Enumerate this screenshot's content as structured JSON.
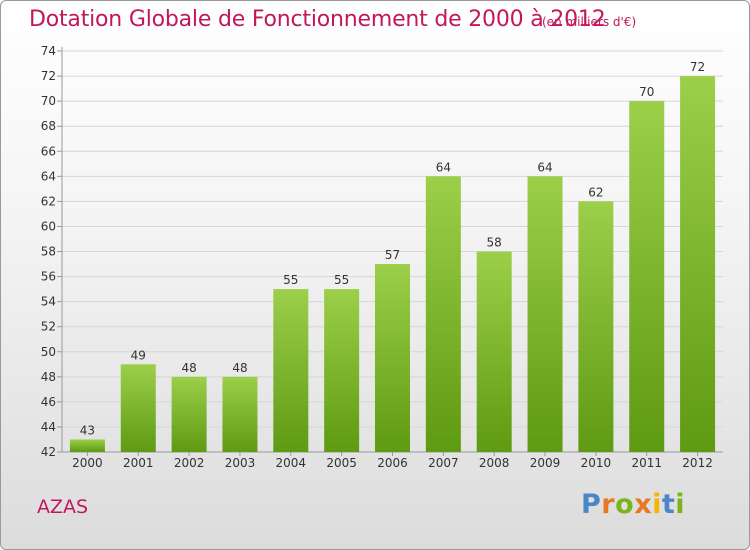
{
  "header": {
    "title": "Dotation Globale de Fonctionnement de 2000 à 2012",
    "subtitle": "(en milliers d'€)"
  },
  "commune": "AZAS",
  "logo": {
    "text": "Proxiti",
    "letter_colors": [
      "#4a86c8",
      "#e87722",
      "#7ab51d",
      "#e87722",
      "#f2b705",
      "#4a86c8",
      "#7ab51d"
    ]
  },
  "chart_data": {
    "type": "bar",
    "categories": [
      "2000",
      "2001",
      "2002",
      "2003",
      "2004",
      "2005",
      "2006",
      "2007",
      "2008",
      "2009",
      "2010",
      "2011",
      "2012"
    ],
    "values": [
      43,
      49,
      48,
      48,
      55,
      55,
      57,
      64,
      58,
      64,
      62,
      70,
      72
    ],
    "ylim": [
      42,
      74
    ],
    "yticks": [
      42,
      44,
      46,
      48,
      50,
      52,
      54,
      56,
      58,
      60,
      62,
      64,
      66,
      68,
      70,
      72,
      74
    ],
    "grid": true,
    "bar_color_top": "#9ccf4a",
    "bar_color_bottom": "#5e9a12"
  }
}
